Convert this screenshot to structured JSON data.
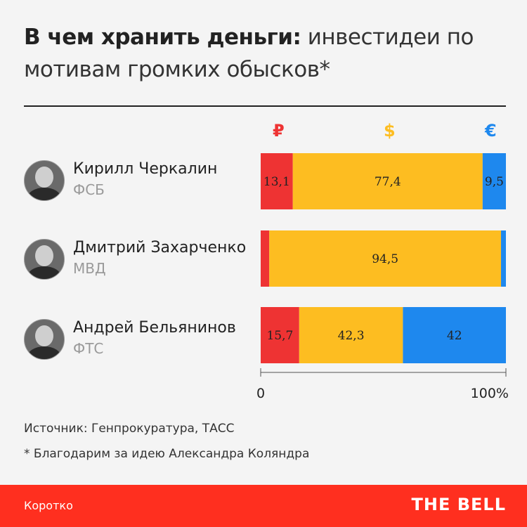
{
  "header": {
    "title_bold": "В чем хранить деньги:",
    "title_rest": " инвестидеи по мотивам громких обысков*"
  },
  "currencies": [
    {
      "symbol": "₽",
      "color": "#ee3333"
    },
    {
      "symbol": "$",
      "color": "#fdbd21"
    },
    {
      "symbol": "€",
      "color": "#1e88ee"
    }
  ],
  "people": [
    {
      "name": "Кирилл Черкалин",
      "org": "ФСБ"
    },
    {
      "name": "Дмитрий Захарченко",
      "org": "МВД"
    },
    {
      "name": "Андрей Бельянинов",
      "org": "ФТС"
    }
  ],
  "chart_data": {
    "type": "bar",
    "orientation": "horizontal",
    "stacked": true,
    "categories": [
      "Кирилл Черкалин",
      "Дмитрий Захарченко",
      "Андрей Бельянинов"
    ],
    "series": [
      {
        "name": "₽",
        "color": "#ee3333",
        "values": [
          13.1,
          3.5,
          15.7
        ],
        "labels": [
          "13,1",
          "",
          "15,7"
        ]
      },
      {
        "name": "$",
        "color": "#fdbd21",
        "values": [
          77.4,
          94.5,
          42.3
        ],
        "labels": [
          "77,4",
          "94,5",
          "42,3"
        ]
      },
      {
        "name": "€",
        "color": "#1e88ee",
        "values": [
          9.5,
          2.0,
          42
        ],
        "labels": [
          "9,5",
          "",
          "42"
        ]
      }
    ],
    "xlim": [
      0,
      100
    ],
    "xtick_labels": [
      "0",
      "100%"
    ]
  },
  "footer": {
    "source": "Источник: Генпрокуратура, ТАСС",
    "thanks": "* Благодарим за идею Александра Коляндра",
    "left": "Коротко",
    "brand": "THE BELL"
  }
}
